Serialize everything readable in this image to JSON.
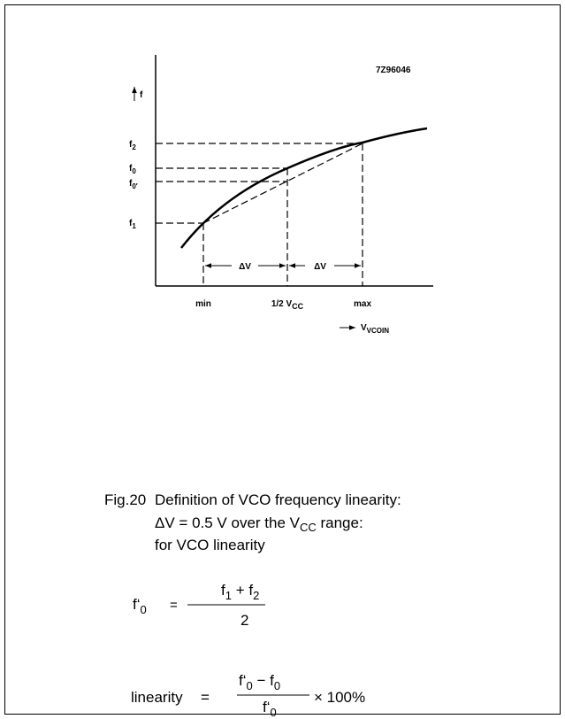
{
  "figure": {
    "code": "7Z96046",
    "y_label": "f",
    "levels": [
      {
        "base": "f",
        "sub": "2"
      },
      {
        "base": "f",
        "sub": "0"
      },
      {
        "base": "f",
        "sub": "0′"
      },
      {
        "base": "f",
        "sub": "1"
      }
    ],
    "delta_labels": [
      "ΔV",
      "ΔV"
    ],
    "x_ticks": [
      {
        "base": "min"
      },
      {
        "base": "1/2 V",
        "sub": "CC"
      },
      {
        "base": "max"
      }
    ],
    "x_label": {
      "base": "V",
      "sub": "VCOIN"
    }
  },
  "caption": {
    "number": "Fig.20",
    "line1": "Definition of VCO frequency linearity:",
    "line2": {
      "pre": "ΔV = 0.5 V over the V",
      "sub": "CC",
      "post": " range:"
    },
    "line3": "for VCO linearity"
  },
  "formula1": {
    "lhs": {
      "base": "f‘",
      "sub": "0"
    },
    "eq": "=",
    "numerator": [
      {
        "base": "f",
        "sub": "1"
      },
      {
        "base": " + "
      },
      {
        "base": "f",
        "sub": "2"
      }
    ],
    "denominator": "2"
  },
  "formula2": {
    "lhs": "linearity",
    "eq": "=",
    "numerator": [
      {
        "base": "f‘",
        "sub": "0"
      },
      {
        "base": " − "
      },
      {
        "base": "f",
        "sub": "0"
      }
    ],
    "denominator": {
      "base": "f‘",
      "sub": "0"
    },
    "tail": "× 100%"
  }
}
